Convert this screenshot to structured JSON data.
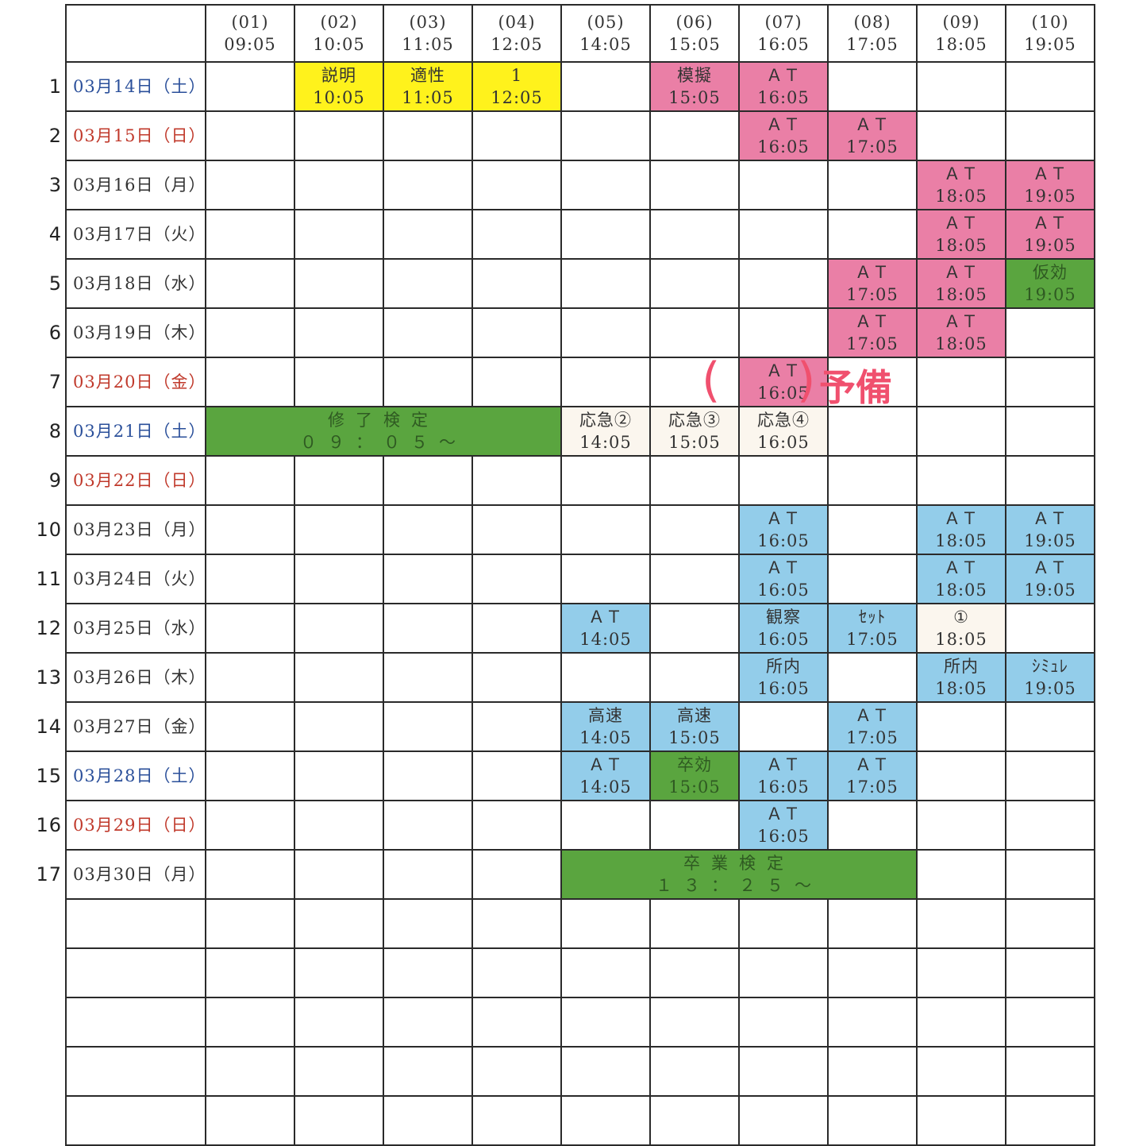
{
  "colors": {
    "saturday": "#2a4f9a",
    "holiday": "#c0392b",
    "weekday": "#333333",
    "y": "#fff21c",
    "p": "#ea7fa6",
    "g": "#5aa53f",
    "b": "#93cdea",
    "c": "#fbf6ee",
    "annotation": "#f0506e"
  },
  "headers": [
    {
      "no": "(01)",
      "time": "09:05"
    },
    {
      "no": "(02)",
      "time": "10:05"
    },
    {
      "no": "(03)",
      "time": "11:05"
    },
    {
      "no": "(04)",
      "time": "12:05"
    },
    {
      "no": "(05)",
      "time": "14:05"
    },
    {
      "no": "(06)",
      "time": "15:05"
    },
    {
      "no": "(07)",
      "time": "16:05"
    },
    {
      "no": "(08)",
      "time": "17:05"
    },
    {
      "no": "(09)",
      "time": "18:05"
    },
    {
      "no": "(10)",
      "time": "19:05"
    }
  ],
  "rows": [
    {
      "num": "1",
      "date": "03月14日（土）",
      "kind": "saturday",
      "cells": [
        null,
        {
          "l1": "説明",
          "l2": "10:05",
          "c": "y"
        },
        {
          "l1": "適性",
          "l2": "11:05",
          "c": "y"
        },
        {
          "l1": "1",
          "l2": "12:05",
          "c": "y"
        },
        null,
        {
          "l1": "模擬",
          "l2": "15:05",
          "c": "p"
        },
        {
          "l1": "ＡＴ",
          "l2": "16:05",
          "c": "p"
        },
        null,
        null,
        null
      ]
    },
    {
      "num": "2",
      "date": "03月15日（日）",
      "kind": "holiday",
      "cells": [
        null,
        null,
        null,
        null,
        null,
        null,
        {
          "l1": "ＡＴ",
          "l2": "16:05",
          "c": "p"
        },
        {
          "l1": "ＡＴ",
          "l2": "17:05",
          "c": "p"
        },
        null,
        null
      ]
    },
    {
      "num": "3",
      "date": "03月16日（月）",
      "kind": "weekday",
      "cells": [
        null,
        null,
        null,
        null,
        null,
        null,
        null,
        null,
        {
          "l1": "ＡＴ",
          "l2": "18:05",
          "c": "p"
        },
        {
          "l1": "ＡＴ",
          "l2": "19:05",
          "c": "p"
        }
      ]
    },
    {
      "num": "4",
      "date": "03月17日（火）",
      "kind": "weekday",
      "cells": [
        null,
        null,
        null,
        null,
        null,
        null,
        null,
        null,
        {
          "l1": "ＡＴ",
          "l2": "18:05",
          "c": "p"
        },
        {
          "l1": "ＡＴ",
          "l2": "19:05",
          "c": "p"
        }
      ]
    },
    {
      "num": "5",
      "date": "03月18日（水）",
      "kind": "weekday",
      "cells": [
        null,
        null,
        null,
        null,
        null,
        null,
        null,
        {
          "l1": "ＡＴ",
          "l2": "17:05",
          "c": "p"
        },
        {
          "l1": "ＡＴ",
          "l2": "18:05",
          "c": "p"
        },
        {
          "l1": "仮効",
          "l2": "19:05",
          "c": "g"
        }
      ]
    },
    {
      "num": "6",
      "date": "03月19日（木）",
      "kind": "weekday",
      "cells": [
        null,
        null,
        null,
        null,
        null,
        null,
        null,
        {
          "l1": "ＡＴ",
          "l2": "17:05",
          "c": "p"
        },
        {
          "l1": "ＡＴ",
          "l2": "18:05",
          "c": "p"
        },
        null
      ]
    },
    {
      "num": "7",
      "date": "03月20日（金）",
      "kind": "holiday",
      "cells": [
        null,
        null,
        null,
        null,
        null,
        null,
        {
          "l1": "ＡＴ",
          "l2": "16:05",
          "c": "p"
        },
        null,
        null,
        null
      ]
    },
    {
      "num": "8",
      "date": "03月21日（土）",
      "kind": "saturday",
      "cells": [
        {
          "l1": "修了検定",
          "l2": "０９：０５～",
          "c": "g",
          "span": 4
        },
        {
          "l1": "応急②",
          "l2": "14:05",
          "c": "c"
        },
        {
          "l1": "応急③",
          "l2": "15:05",
          "c": "c"
        },
        {
          "l1": "応急④",
          "l2": "16:05",
          "c": "c"
        },
        null,
        null,
        null
      ]
    },
    {
      "num": "9",
      "date": "03月22日（日）",
      "kind": "holiday",
      "cells": [
        null,
        null,
        null,
        null,
        null,
        null,
        null,
        null,
        null,
        null
      ]
    },
    {
      "num": "10",
      "date": "03月23日（月）",
      "kind": "weekday",
      "cells": [
        null,
        null,
        null,
        null,
        null,
        null,
        {
          "l1": "ＡＴ",
          "l2": "16:05",
          "c": "b"
        },
        null,
        {
          "l1": "ＡＴ",
          "l2": "18:05",
          "c": "b"
        },
        {
          "l1": "ＡＴ",
          "l2": "19:05",
          "c": "b"
        }
      ]
    },
    {
      "num": "11",
      "date": "03月24日（火）",
      "kind": "weekday",
      "cells": [
        null,
        null,
        null,
        null,
        null,
        null,
        {
          "l1": "ＡＴ",
          "l2": "16:05",
          "c": "b"
        },
        null,
        {
          "l1": "ＡＴ",
          "l2": "18:05",
          "c": "b"
        },
        {
          "l1": "ＡＴ",
          "l2": "19:05",
          "c": "b"
        }
      ]
    },
    {
      "num": "12",
      "date": "03月25日（水）",
      "kind": "weekday",
      "cells": [
        null,
        null,
        null,
        null,
        {
          "l1": "ＡＴ",
          "l2": "14:05",
          "c": "b"
        },
        null,
        {
          "l1": "観察",
          "l2": "16:05",
          "c": "b"
        },
        {
          "l1": "ｾｯﾄ",
          "l2": "17:05",
          "c": "b"
        },
        {
          "l1": "①",
          "l2": "18:05",
          "c": "c"
        },
        null
      ]
    },
    {
      "num": "13",
      "date": "03月26日（木）",
      "kind": "weekday",
      "cells": [
        null,
        null,
        null,
        null,
        null,
        null,
        {
          "l1": "所内",
          "l2": "16:05",
          "c": "b"
        },
        null,
        {
          "l1": "所内",
          "l2": "18:05",
          "c": "b"
        },
        {
          "l1": "ｼﾐｭﾚ",
          "l2": "19:05",
          "c": "b"
        }
      ]
    },
    {
      "num": "14",
      "date": "03月27日（金）",
      "kind": "weekday",
      "cells": [
        null,
        null,
        null,
        null,
        {
          "l1": "高速",
          "l2": "14:05",
          "c": "b"
        },
        {
          "l1": "高速",
          "l2": "15:05",
          "c": "b"
        },
        null,
        {
          "l1": "ＡＴ",
          "l2": "17:05",
          "c": "b"
        },
        null,
        null
      ]
    },
    {
      "num": "15",
      "date": "03月28日（土）",
      "kind": "saturday",
      "cells": [
        null,
        null,
        null,
        null,
        {
          "l1": "ＡＴ",
          "l2": "14:05",
          "c": "b"
        },
        {
          "l1": "卒効",
          "l2": "15:05",
          "c": "g"
        },
        {
          "l1": "ＡＴ",
          "l2": "16:05",
          "c": "b"
        },
        {
          "l1": "ＡＴ",
          "l2": "17:05",
          "c": "b"
        },
        null,
        null
      ]
    },
    {
      "num": "16",
      "date": "03月29日（日）",
      "kind": "holiday",
      "cells": [
        null,
        null,
        null,
        null,
        null,
        null,
        {
          "l1": "ＡＴ",
          "l2": "16:05",
          "c": "b"
        },
        null,
        null,
        null
      ]
    },
    {
      "num": "17",
      "date": "03月30日（月）",
      "kind": "weekday",
      "cells": [
        null,
        null,
        null,
        null,
        {
          "l1": "卒業検定",
          "l2": "１３：２５～",
          "c": "g",
          "span": 4
        },
        null,
        null
      ]
    }
  ],
  "empty_rows": 5,
  "annotation": {
    "text": "予備",
    "open": "(",
    "close": ")"
  }
}
